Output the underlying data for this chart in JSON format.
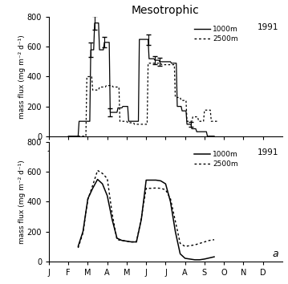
{
  "title": "Mesotrophic",
  "year_label": "1991",
  "ylabel": "mass flux (mg m⁻² d⁻¹)",
  "xlabel_ticks": [
    "J",
    "F",
    "M",
    "A",
    "M",
    "J",
    "J",
    "A",
    "S",
    "O",
    "N",
    "D"
  ],
  "ylim": [
    0,
    800
  ],
  "yticks": [
    0,
    200,
    400,
    600,
    800
  ],
  "background_color": "#ffffff",
  "top_1000m_x": [
    1.0,
    1.5,
    1.55,
    1.6,
    2.1,
    2.15,
    2.3,
    2.35,
    2.55,
    2.6,
    2.8,
    2.85,
    3.1,
    3.15,
    3.5,
    3.55,
    3.75,
    3.8,
    4.05,
    4.1,
    4.6,
    4.65,
    5.1,
    5.15,
    5.4,
    5.45,
    5.65,
    5.7,
    5.95,
    6.0,
    6.25,
    6.3,
    6.55,
    6.6,
    6.8,
    6.85,
    7.05,
    7.1,
    7.3,
    7.35,
    7.55,
    7.6,
    7.8,
    7.85,
    8.1,
    8.15,
    8.5
  ],
  "top_1000m_y": [
    0,
    0,
    100,
    100,
    100,
    580,
    580,
    760,
    760,
    580,
    580,
    630,
    630,
    160,
    160,
    190,
    190,
    200,
    200,
    100,
    100,
    650,
    650,
    520,
    520,
    510,
    510,
    500,
    500,
    500,
    500,
    490,
    490,
    200,
    200,
    170,
    170,
    80,
    80,
    50,
    50,
    30,
    30,
    30,
    30,
    0,
    0
  ],
  "top_2500m_x": [
    1.5,
    1.9,
    1.95,
    2.2,
    2.25,
    2.55,
    2.6,
    2.9,
    2.95,
    3.25,
    3.3,
    3.6,
    3.65,
    4.0,
    4.05,
    4.35,
    4.4,
    5.05,
    5.1,
    5.4,
    5.45,
    5.75,
    5.8,
    6.1,
    6.15,
    6.45,
    6.5,
    6.75,
    6.8,
    7.05,
    7.1,
    7.35,
    7.4,
    7.65,
    7.7,
    7.95,
    8.0,
    8.3,
    8.35,
    8.65
  ],
  "top_2500m_y": [
    0,
    0,
    400,
    400,
    310,
    310,
    330,
    330,
    340,
    340,
    330,
    330,
    100,
    100,
    90,
    90,
    80,
    80,
    490,
    490,
    490,
    490,
    480,
    480,
    480,
    480,
    260,
    260,
    240,
    240,
    100,
    100,
    130,
    130,
    100,
    100,
    175,
    175,
    100,
    100
  ],
  "top_errbar_x": [
    2.15,
    2.35,
    2.85,
    3.15,
    5.1,
    5.45,
    5.7,
    7.3
  ],
  "top_errbar_y": [
    580,
    760,
    630,
    160,
    650,
    510,
    500,
    80
  ],
  "top_errbar_e": [
    50,
    45,
    35,
    25,
    35,
    25,
    25,
    15
  ],
  "bot_1000m_x": [
    1.5,
    1.75,
    2.0,
    2.25,
    2.5,
    2.75,
    3.0,
    3.25,
    3.5,
    3.75,
    4.0,
    4.25,
    4.5,
    4.75,
    5.0,
    5.25,
    5.5,
    5.75,
    6.0,
    6.25,
    6.5,
    6.75,
    7.0,
    7.25,
    7.5,
    7.75,
    8.0,
    8.5
  ],
  "bot_1000m_y": [
    100,
    200,
    420,
    490,
    550,
    520,
    440,
    280,
    155,
    140,
    135,
    130,
    130,
    280,
    545,
    545,
    545,
    540,
    520,
    400,
    200,
    50,
    20,
    15,
    10,
    10,
    15,
    30
  ],
  "bot_2500m_x": [
    1.5,
    1.75,
    2.0,
    2.25,
    2.5,
    2.75,
    3.0,
    3.25,
    3.5,
    3.75,
    4.0,
    4.25,
    4.5,
    4.75,
    5.0,
    5.25,
    5.5,
    5.75,
    6.0,
    6.25,
    6.5,
    6.75,
    7.0,
    7.25,
    7.5,
    7.75,
    8.0,
    8.25,
    8.5
  ],
  "bot_2500m_y": [
    90,
    190,
    415,
    510,
    610,
    590,
    555,
    320,
    145,
    140,
    135,
    130,
    130,
    290,
    490,
    490,
    492,
    490,
    480,
    420,
    270,
    120,
    100,
    105,
    110,
    120,
    130,
    140,
    145
  ],
  "legend_1000m": "1000m",
  "legend_2500m": "2500m",
  "label_a": "a"
}
